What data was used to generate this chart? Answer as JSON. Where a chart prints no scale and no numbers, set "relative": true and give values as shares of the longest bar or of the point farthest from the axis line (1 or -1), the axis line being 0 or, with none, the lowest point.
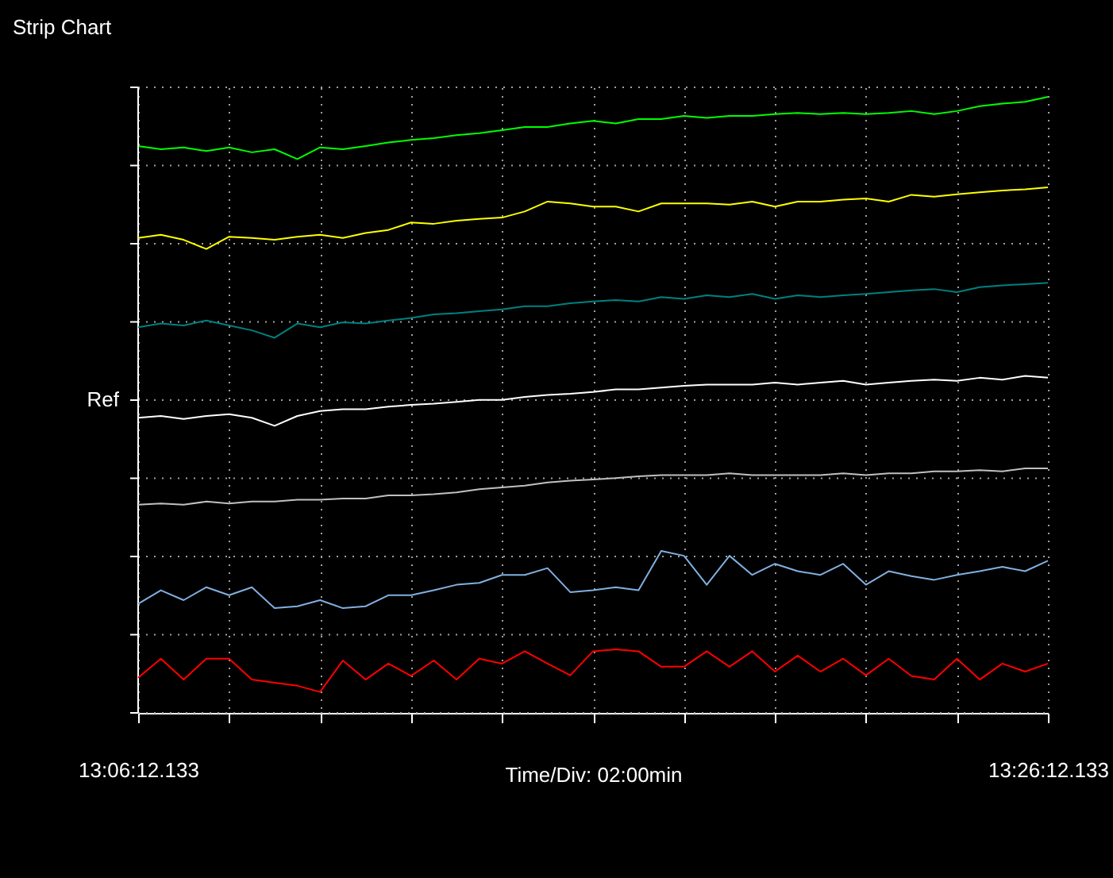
{
  "chart_data": {
    "type": "line",
    "title": "Strip Chart",
    "xlabel": "Time/Div: 02:00min",
    "relative": true,
    "grid": true,
    "line_style": "solid",
    "categories": [
      "13:06:12.133",
      null,
      null,
      null,
      null,
      null,
      null,
      null,
      null,
      null,
      null,
      null,
      null,
      null,
      null,
      null,
      null,
      null,
      null,
      null,
      null,
      null,
      null,
      null,
      null,
      null,
      null,
      null,
      null,
      null,
      null,
      null,
      null,
      null,
      null,
      null,
      null,
      null,
      null,
      null,
      "13:26:12.133"
    ],
    "series": [
      {
        "color": "#00ff00",
        "values": [
          0.92,
          0.915,
          0.918,
          0.912,
          0.918,
          0.91,
          0.915,
          0.899,
          0.918,
          0.915,
          0.92,
          0.926,
          0.93,
          0.933,
          0.938,
          0.941,
          0.946,
          0.951,
          0.951,
          0.957,
          0.961,
          0.957,
          0.964,
          0.964,
          0.969,
          0.966,
          0.969,
          0.969,
          0.972,
          0.974,
          0.972,
          0.974,
          0.972,
          0.974,
          0.977,
          0.972,
          0.977,
          0.985,
          0.989,
          0.992,
          1.0
        ]
      },
      {
        "color": "#ffff00",
        "values": [
          0.771,
          0.776,
          0.768,
          0.753,
          0.773,
          0.771,
          0.768,
          0.773,
          0.776,
          0.771,
          0.779,
          0.784,
          0.796,
          0.794,
          0.799,
          0.802,
          0.804,
          0.814,
          0.83,
          0.827,
          0.822,
          0.822,
          0.814,
          0.827,
          0.827,
          0.827,
          0.825,
          0.83,
          0.822,
          0.83,
          0.83,
          0.833,
          0.835,
          0.83,
          0.841,
          0.838,
          0.842,
          0.845,
          0.848,
          0.85,
          0.853
        ]
      },
      {
        "color": "#008080",
        "values": [
          0.626,
          0.632,
          0.629,
          0.637,
          0.629,
          0.621,
          0.609,
          0.632,
          0.626,
          0.634,
          0.632,
          0.637,
          0.641,
          0.647,
          0.649,
          0.652,
          0.655,
          0.66,
          0.66,
          0.665,
          0.668,
          0.67,
          0.668,
          0.675,
          0.672,
          0.678,
          0.675,
          0.68,
          0.672,
          0.678,
          0.675,
          0.678,
          0.68,
          0.683,
          0.686,
          0.688,
          0.683,
          0.691,
          0.694,
          0.696,
          0.698
        ]
      },
      {
        "color": "#ffffff",
        "values": [
          0.479,
          0.482,
          0.477,
          0.482,
          0.485,
          0.479,
          0.466,
          0.482,
          0.49,
          0.493,
          0.493,
          0.497,
          0.5,
          0.502,
          0.505,
          0.508,
          0.508,
          0.513,
          0.516,
          0.518,
          0.521,
          0.525,
          0.525,
          0.528,
          0.531,
          0.533,
          0.533,
          0.533,
          0.536,
          0.533,
          0.536,
          0.539,
          0.533,
          0.536,
          0.539,
          0.541,
          0.539,
          0.544,
          0.541,
          0.547,
          0.544
        ]
      },
      {
        "color": "#c0c0c0",
        "values": [
          0.338,
          0.34,
          0.338,
          0.343,
          0.34,
          0.343,
          0.343,
          0.346,
          0.346,
          0.348,
          0.348,
          0.353,
          0.353,
          0.355,
          0.358,
          0.363,
          0.366,
          0.369,
          0.374,
          0.377,
          0.379,
          0.381,
          0.384,
          0.386,
          0.386,
          0.386,
          0.389,
          0.386,
          0.386,
          0.386,
          0.386,
          0.389,
          0.386,
          0.389,
          0.389,
          0.392,
          0.392,
          0.394,
          0.392,
          0.397,
          0.397
        ]
      },
      {
        "color": "#80b0e0",
        "values": [
          0.177,
          0.199,
          0.183,
          0.204,
          0.191,
          0.204,
          0.17,
          0.173,
          0.183,
          0.17,
          0.173,
          0.191,
          0.191,
          0.199,
          0.208,
          0.211,
          0.224,
          0.224,
          0.235,
          0.196,
          0.199,
          0.204,
          0.199,
          0.263,
          0.255,
          0.208,
          0.255,
          0.224,
          0.242,
          0.23,
          0.224,
          0.242,
          0.208,
          0.23,
          0.222,
          0.216,
          0.224,
          0.23,
          0.237,
          0.23,
          0.247
        ]
      },
      {
        "color": "#ff0000",
        "values": [
          0.057,
          0.088,
          0.054,
          0.088,
          0.088,
          0.054,
          0.049,
          0.044,
          0.034,
          0.085,
          0.054,
          0.08,
          0.06,
          0.085,
          0.054,
          0.088,
          0.08,
          0.1,
          0.08,
          0.061,
          0.1,
          0.103,
          0.1,
          0.075,
          0.075,
          0.1,
          0.075,
          0.1,
          0.067,
          0.093,
          0.067,
          0.088,
          0.061,
          0.088,
          0.06,
          0.054,
          0.088,
          0.054,
          0.08,
          0.067,
          0.08
        ]
      }
    ],
    "annotations": [
      "Ref"
    ]
  }
}
